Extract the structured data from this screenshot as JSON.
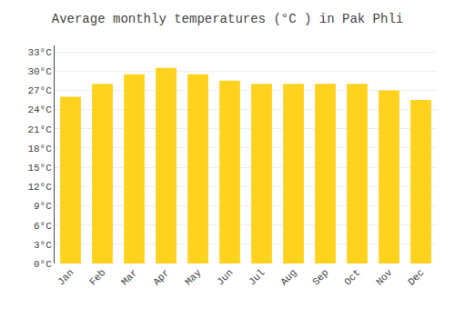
{
  "chart_data": {
    "type": "bar",
    "title": "Average monthly temperatures (°C ) in Pak Phli",
    "categories": [
      "Jan",
      "Feb",
      "Mar",
      "Apr",
      "May",
      "Jun",
      "Jul",
      "Aug",
      "Sep",
      "Oct",
      "Nov",
      "Dec"
    ],
    "values": [
      26.0,
      28.0,
      29.5,
      30.5,
      29.5,
      28.5,
      28.0,
      28.0,
      28.0,
      28.0,
      27.0,
      25.5
    ],
    "color": "#FFD21E",
    "ylim": [
      0,
      34
    ],
    "yticks": [
      {
        "value": 0,
        "label": "0°C"
      },
      {
        "value": 3,
        "label": "3°C"
      },
      {
        "value": 6,
        "label": "6°C"
      },
      {
        "value": 9,
        "label": "9°C"
      },
      {
        "value": 12,
        "label": "12°C"
      },
      {
        "value": 15,
        "label": "15°C"
      },
      {
        "value": 18,
        "label": "18°C"
      },
      {
        "value": 21,
        "label": "21°C"
      },
      {
        "value": 24,
        "label": "24°C"
      },
      {
        "value": 27,
        "label": "27°C"
      },
      {
        "value": 30,
        "label": "30°C"
      },
      {
        "value": 33,
        "label": "33°C"
      }
    ],
    "grid": true
  }
}
